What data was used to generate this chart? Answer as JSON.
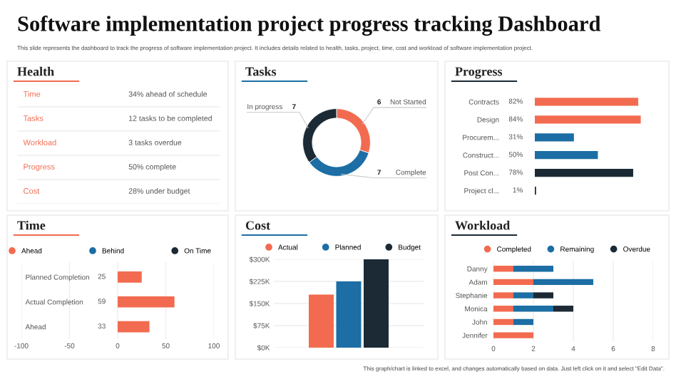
{
  "chart_data": [
    {
      "type": "other",
      "title": "Software implementation project progress tracking Dashboard",
      "subtitle": "This slide represents the dashboard to track the progress of software implementation project. It includes details related to health, tasks, project, time, cost and workload of software implementation project.",
      "annotations": [
        "This graph/chart is linked to excel, and changes automatically based on data. Just left click on it and select \"Edit Data\"."
      ]
    },
    {
      "type": "other",
      "title": "Health",
      "categories": [
        "Time",
        "Tasks",
        "Workload",
        "Progress",
        "Cost"
      ],
      "annotations": [
        "34% ahead of schedule",
        "12 tasks to be completed",
        "3 tasks overdue",
        "50% complete",
        "28% under budget"
      ]
    },
    {
      "type": "donut",
      "title": "Tasks",
      "categories": [
        "Not Started",
        "Complete",
        "In progress"
      ],
      "values": [
        6,
        7,
        7
      ],
      "colors": [
        "#f26b50",
        "#1c6ea4",
        "#1b2a35"
      ],
      "data_labels": true
    },
    {
      "type": "bar",
      "orientation": "horizontal",
      "title": "Progress",
      "categories": [
        "Contracts",
        "Design",
        "Procurem...",
        "Construct...",
        "Post Con...",
        "Project cl..."
      ],
      "values": [
        82,
        84,
        31,
        50,
        78,
        1
      ],
      "colors": [
        "#f26b50",
        "#f26b50",
        "#1c6ea4",
        "#1c6ea4",
        "#1b2a35",
        "#1b2a35"
      ],
      "value_labels": [
        "82%",
        "84%",
        "31%",
        "50%",
        "78%",
        "1%"
      ]
    },
    {
      "type": "bar",
      "orientation": "horizontal",
      "title": "Time",
      "categories": [
        "Planned Completion",
        "Actual Completion",
        "Ahead"
      ],
      "series": [
        {
          "name": "Ahead",
          "color": "#f26b50",
          "values": [
            25,
            59,
            33
          ]
        },
        {
          "name": "Behind",
          "color": "#1c6ea4",
          "values": [
            null,
            null,
            null
          ]
        },
        {
          "name": "On Time",
          "color": "#1b2a35",
          "values": [
            null,
            null,
            null
          ]
        }
      ],
      "xlim": [
        -100,
        100
      ],
      "xticks": [
        -100,
        -50,
        0,
        50,
        100
      ],
      "grid": "x",
      "legend": "top",
      "data_labels": true
    },
    {
      "type": "bar",
      "title": "Cost",
      "categories": [
        null
      ],
      "series": [
        {
          "name": "Actual",
          "color": "#f26b50",
          "values": [
            180000
          ]
        },
        {
          "name": "Planned",
          "color": "#1c6ea4",
          "values": [
            225000
          ]
        },
        {
          "name": "Budget",
          "color": "#1b2a35",
          "values": [
            300000
          ]
        }
      ],
      "ylim": [
        0,
        300000
      ],
      "yticks": [
        {
          "value": 0,
          "label": "$0K"
        },
        {
          "value": 75000,
          "label": "$75K"
        },
        {
          "value": 150000,
          "label": "$150K"
        },
        {
          "value": 225000,
          "label": "$225K"
        },
        {
          "value": 300000,
          "label": "$300K"
        }
      ],
      "grid": "y",
      "legend": "top"
    },
    {
      "type": "bar",
      "orientation": "horizontal",
      "stacked": true,
      "title": "Workload",
      "categories": [
        "Danny",
        "Adam",
        "Stephanie",
        "Monica",
        "John",
        "Jennifer"
      ],
      "series": [
        {
          "name": "Completed",
          "color": "#f26b50",
          "values": [
            1,
            2,
            1,
            1,
            1,
            2
          ]
        },
        {
          "name": "Remaining",
          "color": "#1c6ea4",
          "values": [
            2,
            3,
            1,
            2,
            1,
            0
          ]
        },
        {
          "name": "Overdue",
          "color": "#1b2a35",
          "values": [
            0,
            0,
            1,
            1,
            0,
            0
          ]
        }
      ],
      "xlim": [
        0,
        8
      ],
      "xticks": [
        0,
        2,
        4,
        6,
        8
      ],
      "grid": "x",
      "legend": "top"
    }
  ]
}
